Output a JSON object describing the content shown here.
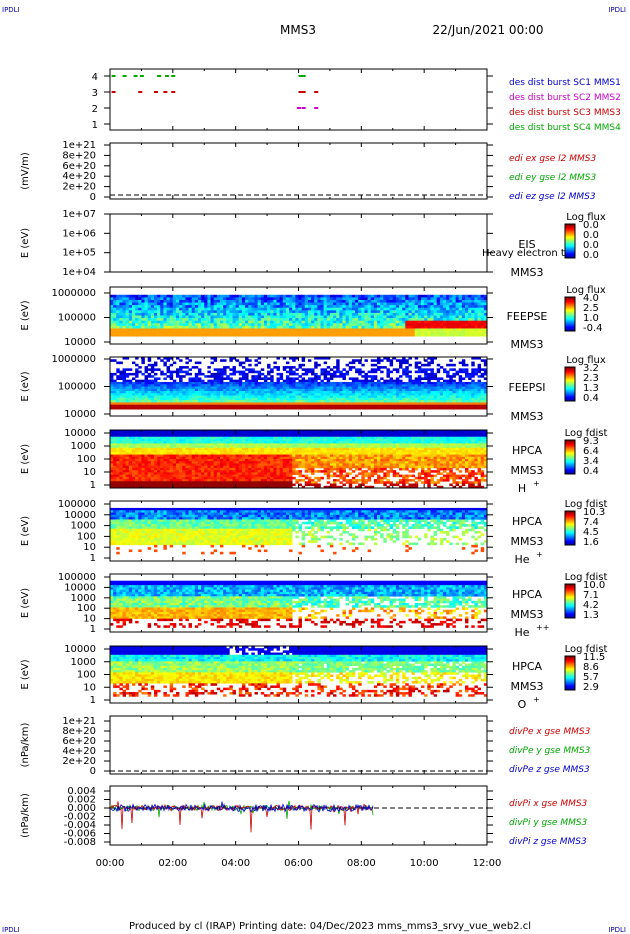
{
  "corner_marks": {
    "top_left": "IPDLI",
    "top_right": "IPDLI",
    "bottom_left": "IPDLI",
    "bottom_right": "IPDLI"
  },
  "header": {
    "spacecraft": "MMS3",
    "date": "22/Jun/2021 00:00"
  },
  "footer": {
    "text": "Produced by cl (IRAP)    Printing date: 04/Dec/2023    mms_mms3_srvy_vue_web2.cl"
  },
  "colors": {
    "mms1": "#0000cc",
    "mms2": "#cc00cc",
    "mms3": "#cc0000",
    "mms4": "#00aa00"
  },
  "chart_data": [
    {
      "type": "scatter",
      "panel": "burst",
      "yticks": [
        "1",
        "2",
        "3",
        "4"
      ],
      "legend": [
        "des dist burst SC1 MMS1",
        "des dist burst SC2 MMS2",
        "des dist burst SC3 MMS3",
        "des dist burst SC4 MMS4"
      ],
      "series": [
        {
          "name": "des dist burst SC4 MMS4",
          "y": 4,
          "x_hours": [
            0.05,
            0.4,
            0.75,
            0.95,
            1.5,
            1.75,
            1.95,
            6.0,
            6.1
          ]
        },
        {
          "name": "des dist burst SC3 MMS3",
          "y": 3,
          "x_hours": [
            0.05,
            0.9,
            1.4,
            1.7,
            1.95,
            6.0,
            6.1,
            6.5
          ]
        },
        {
          "name": "des dist burst SC2 MMS2",
          "y": 2,
          "x_hours": [
            5.95,
            6.1,
            6.5
          ]
        }
      ]
    },
    {
      "type": "line",
      "panel": "edi",
      "ylabel": "(mV/m)",
      "yticks": [
        "0",
        "2e+20",
        "4e+20",
        "6e+20",
        "8e+20",
        "1e+21"
      ],
      "legend": [
        "edi ex gse l2 MMS3",
        "edi ey gse l2 MMS3",
        "edi ez gse l2 MMS3"
      ]
    },
    {
      "type": "heatmap",
      "panel": "eis",
      "ylabel": "E (eV)",
      "yticks": [
        "1e+04",
        "1e+05",
        "1e+06",
        "1e+07"
      ],
      "labels": [
        "EIS",
        "MMS3"
      ],
      "overlay_text": "Heavy electron to",
      "colorbar": {
        "title": "Log flux",
        "ticks": [
          "0.0",
          "0.0",
          "0.0",
          "0.0"
        ]
      }
    },
    {
      "type": "heatmap",
      "panel": "feepse",
      "ylabel": "E (eV)",
      "yticks": [
        "10000",
        "100000",
        "1000000"
      ],
      "labels": [
        "FEEPSE",
        "MMS3"
      ],
      "colorbar": {
        "title": "Log flux",
        "ticks": [
          "4.0",
          "2.5",
          "1.0",
          "-0.4"
        ]
      }
    },
    {
      "type": "heatmap",
      "panel": "feepsi",
      "ylabel": "E (eV)",
      "yticks": [
        "10000",
        "100000",
        "1000000"
      ],
      "labels": [
        "FEEPSI",
        "MMS3"
      ],
      "colorbar": {
        "title": "Log flux",
        "ticks": [
          "3.2",
          "2.3",
          "1.3",
          "0.4"
        ]
      }
    },
    {
      "type": "heatmap",
      "panel": "hpca_h",
      "ylabel": "E (eV)",
      "yticks": [
        "1",
        "10",
        "100",
        "1000",
        "10000"
      ],
      "labels": [
        "HPCA",
        "MMS3",
        "H",
        "+"
      ],
      "colorbar": {
        "title": "Log fdist",
        "ticks": [
          "9.3",
          "6.4",
          "3.4",
          "0.4"
        ]
      }
    },
    {
      "type": "heatmap",
      "panel": "hpca_he",
      "ylabel": "E (eV)",
      "yticks": [
        "1",
        "10",
        "100",
        "1000",
        "10000",
        "100000"
      ],
      "labels": [
        "HPCA",
        "MMS3",
        "He",
        "+"
      ],
      "colorbar": {
        "title": "Log fdist",
        "ticks": [
          "10.3",
          "7.4",
          "4.5",
          "1.6"
        ]
      }
    },
    {
      "type": "heatmap",
      "panel": "hpca_hepp",
      "ylabel": "E (eV)",
      "yticks": [
        "1",
        "10",
        "100",
        "1000",
        "10000",
        "100000"
      ],
      "labels": [
        "HPCA",
        "MMS3",
        "He",
        "++"
      ],
      "colorbar": {
        "title": "Log fdist",
        "ticks": [
          "10.0",
          "7.1",
          "4.2",
          "1.3"
        ]
      }
    },
    {
      "type": "heatmap",
      "panel": "hpca_o",
      "ylabel": "E (eV)",
      "yticks": [
        "1",
        "10",
        "100",
        "1000",
        "10000"
      ],
      "labels": [
        "HPCA",
        "MMS3",
        "O",
        "+"
      ],
      "colorbar": {
        "title": "Log fdist",
        "ticks": [
          "11.5",
          "8.6",
          "5.7",
          "2.9"
        ]
      }
    },
    {
      "type": "line",
      "panel": "divpe",
      "ylabel": "(nPa/km)",
      "yticks": [
        "0",
        "2e+20",
        "4e+20",
        "6e+20",
        "8e+20",
        "1e+21"
      ],
      "legend": [
        "divPe x gse MMS3",
        "divPe y gse MMS3",
        "divPe z gse MMS3"
      ]
    },
    {
      "type": "line",
      "panel": "divpi",
      "ylabel": "(nPa/km)",
      "yticks": [
        "-0.008",
        "-0.006",
        "-0.004",
        "-0.002",
        "0.000",
        "0.002",
        "0.004"
      ],
      "legend": [
        "divPi x gse MMS3",
        "divPi y gse MMS3",
        "divPi z gse MMS3"
      ],
      "x_range_hours": [
        0,
        8.4
      ]
    }
  ],
  "xaxis": {
    "ticks": [
      "00:00",
      "02:00",
      "04:00",
      "06:00",
      "08:00",
      "10:00",
      "12:00"
    ]
  }
}
